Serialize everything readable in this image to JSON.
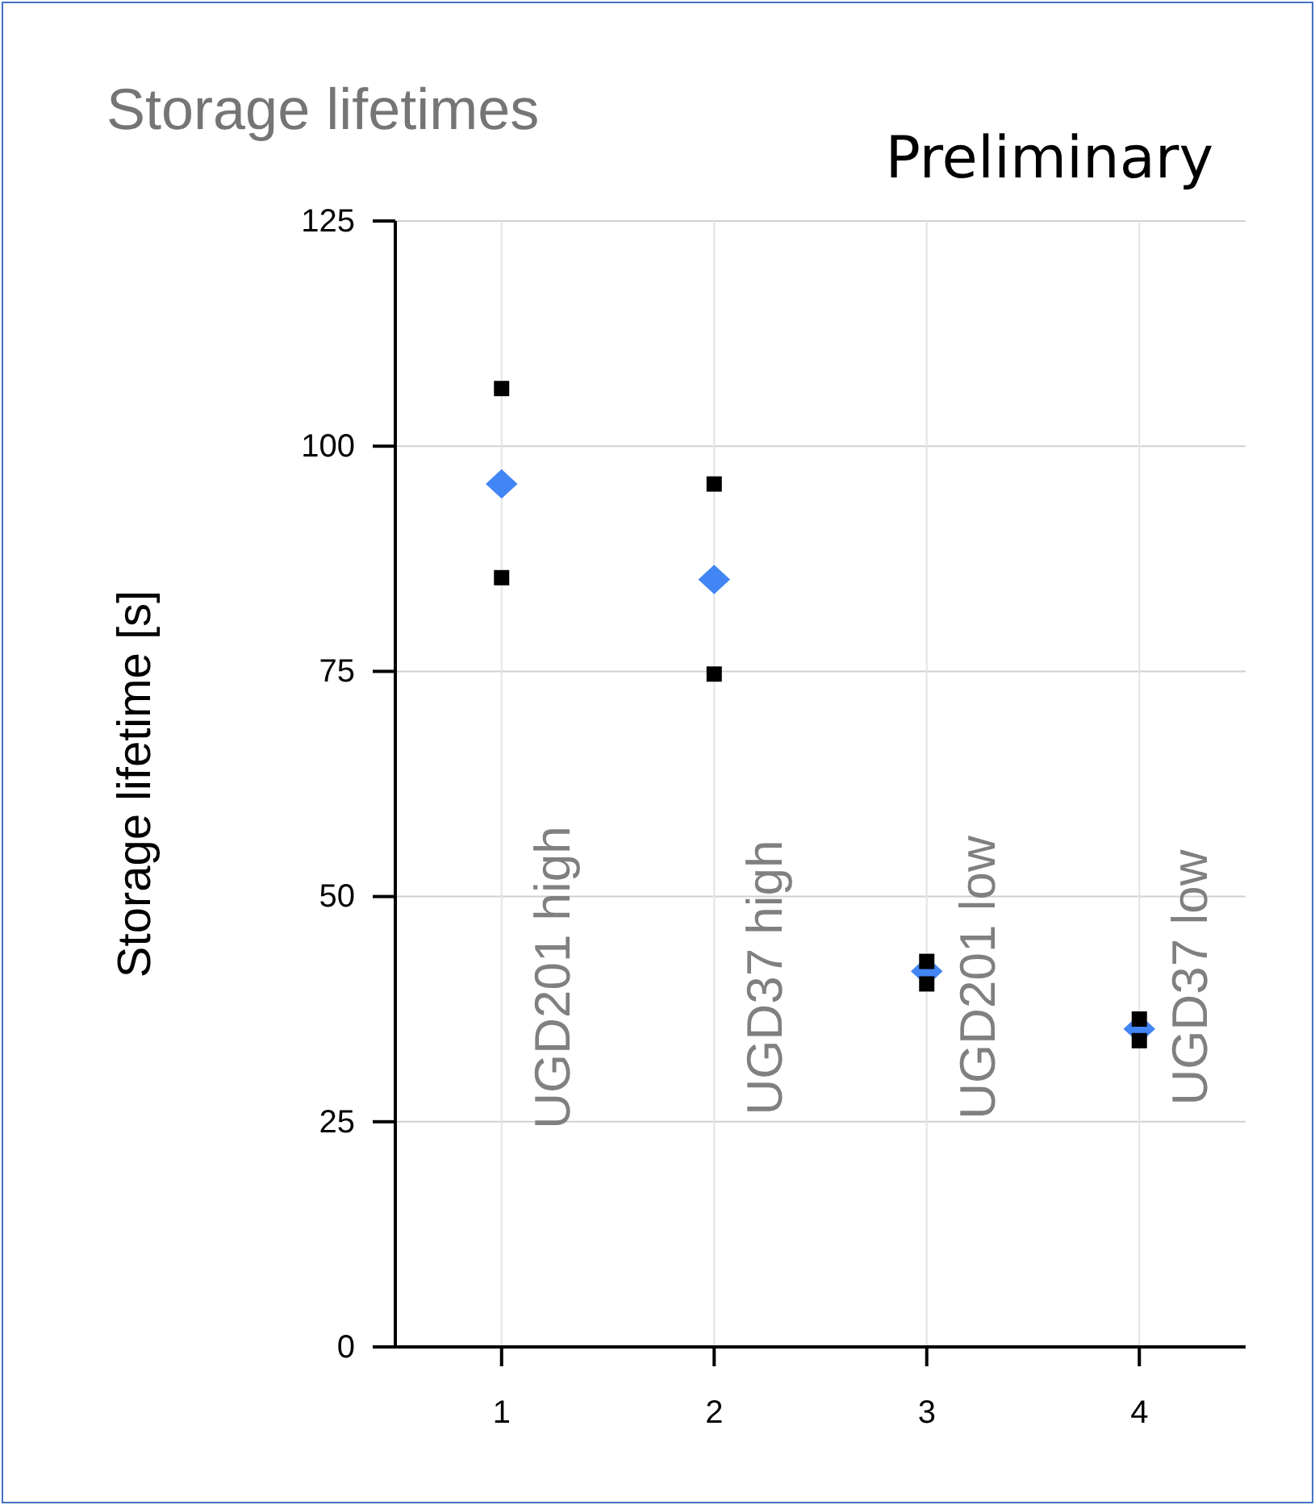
{
  "chart_data": {
    "type": "scatter",
    "title": "Storage lifetimes",
    "ylabel": "Storage lifetime [s]",
    "x": [
      1,
      2,
      3,
      4
    ],
    "series": [
      {
        "color": "#000000",
        "marker": "square",
        "values": [
          106.4,
          95.8,
          42.8,
          36.4
        ]
      },
      {
        "color": "#000000",
        "marker": "square",
        "values": [
          85.4,
          74.7,
          40.3,
          34.0
        ]
      },
      {
        "color": "#4285f4",
        "marker": "diamond",
        "values": [
          95.8,
          85.2,
          41.7,
          35.3
        ]
      }
    ],
    "xlim": [
      0.5,
      4.5
    ],
    "xticks": [
      1,
      2,
      3,
      4
    ],
    "ylim": [
      0,
      125
    ],
    "yticks": [
      0,
      25,
      50,
      75,
      100,
      125
    ],
    "grid": true,
    "annotations": [
      "Preliminary",
      "UGD201 high",
      "UGD37 high",
      "UGD201 low",
      "UGD37 low"
    ]
  }
}
